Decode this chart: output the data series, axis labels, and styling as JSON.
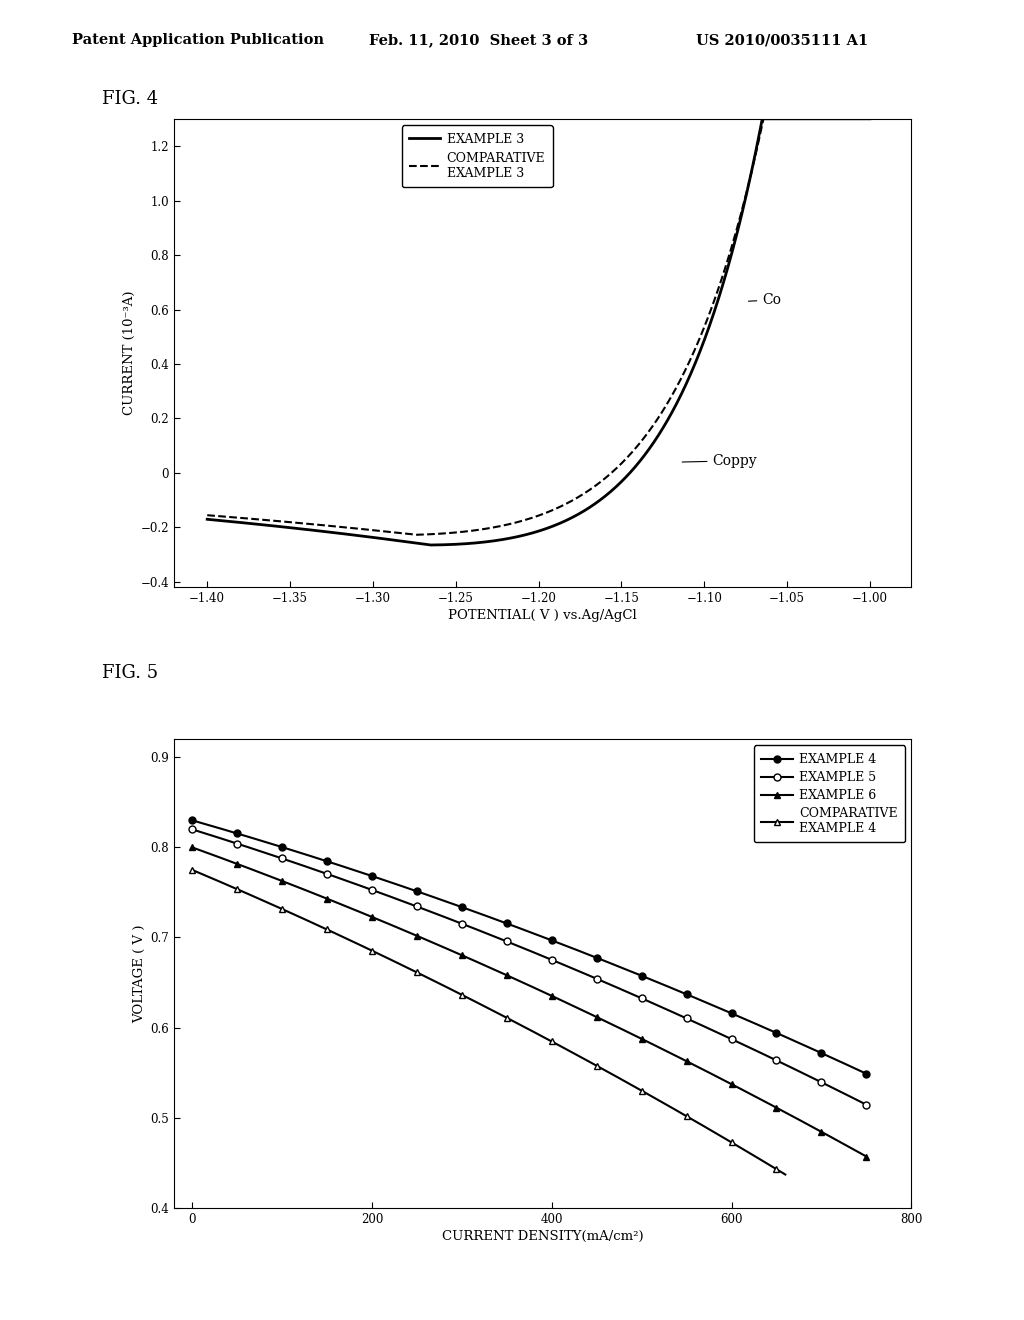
{
  "header_left": "Patent Application Publication",
  "header_mid": "Feb. 11, 2010  Sheet 3 of 3",
  "header_right": "US 2010/0035111 A1",
  "fig4_label": "FIG. 4",
  "fig5_label": "FIG. 5",
  "fig4": {
    "xlabel": "POTENTIAL( V ) vs.Ag/AgCl",
    "ylabel": "CURRENT (10⁻³A)",
    "xlim": [
      -1.42,
      -0.975
    ],
    "ylim": [
      -0.42,
      1.3
    ],
    "xticks": [
      -1.4,
      -1.35,
      -1.3,
      -1.25,
      -1.2,
      -1.15,
      -1.1,
      -1.05,
      -1.0
    ],
    "yticks": [
      -0.4,
      -0.2,
      0,
      0.2,
      0.4,
      0.6,
      0.8,
      1.0,
      1.2
    ],
    "legend_example3": "EXAMPLE 3",
    "legend_comp3": "COMPARATIVE\nEXAMPLE 3",
    "annotation_co": "Co",
    "annotation_coppy": "Coppy"
  },
  "fig5": {
    "xlabel": "CURRENT DENSITY(mA/cm²)",
    "ylabel": "VOLTAGE ( V )",
    "xlim": [
      -20,
      800
    ],
    "ylim": [
      0.4,
      0.92
    ],
    "xticks": [
      0,
      200,
      400,
      600,
      800
    ],
    "yticks": [
      0.4,
      0.5,
      0.6,
      0.7,
      0.8,
      0.9
    ],
    "legend_ex4": "EXAMPLE 4",
    "legend_ex5": "EXAMPLE 5",
    "legend_ex6": "EXAMPLE 6",
    "legend_comp4": "COMPARATIVE\nEXAMPLE 4"
  },
  "bg_color": "#ffffff",
  "line_color": "#000000"
}
